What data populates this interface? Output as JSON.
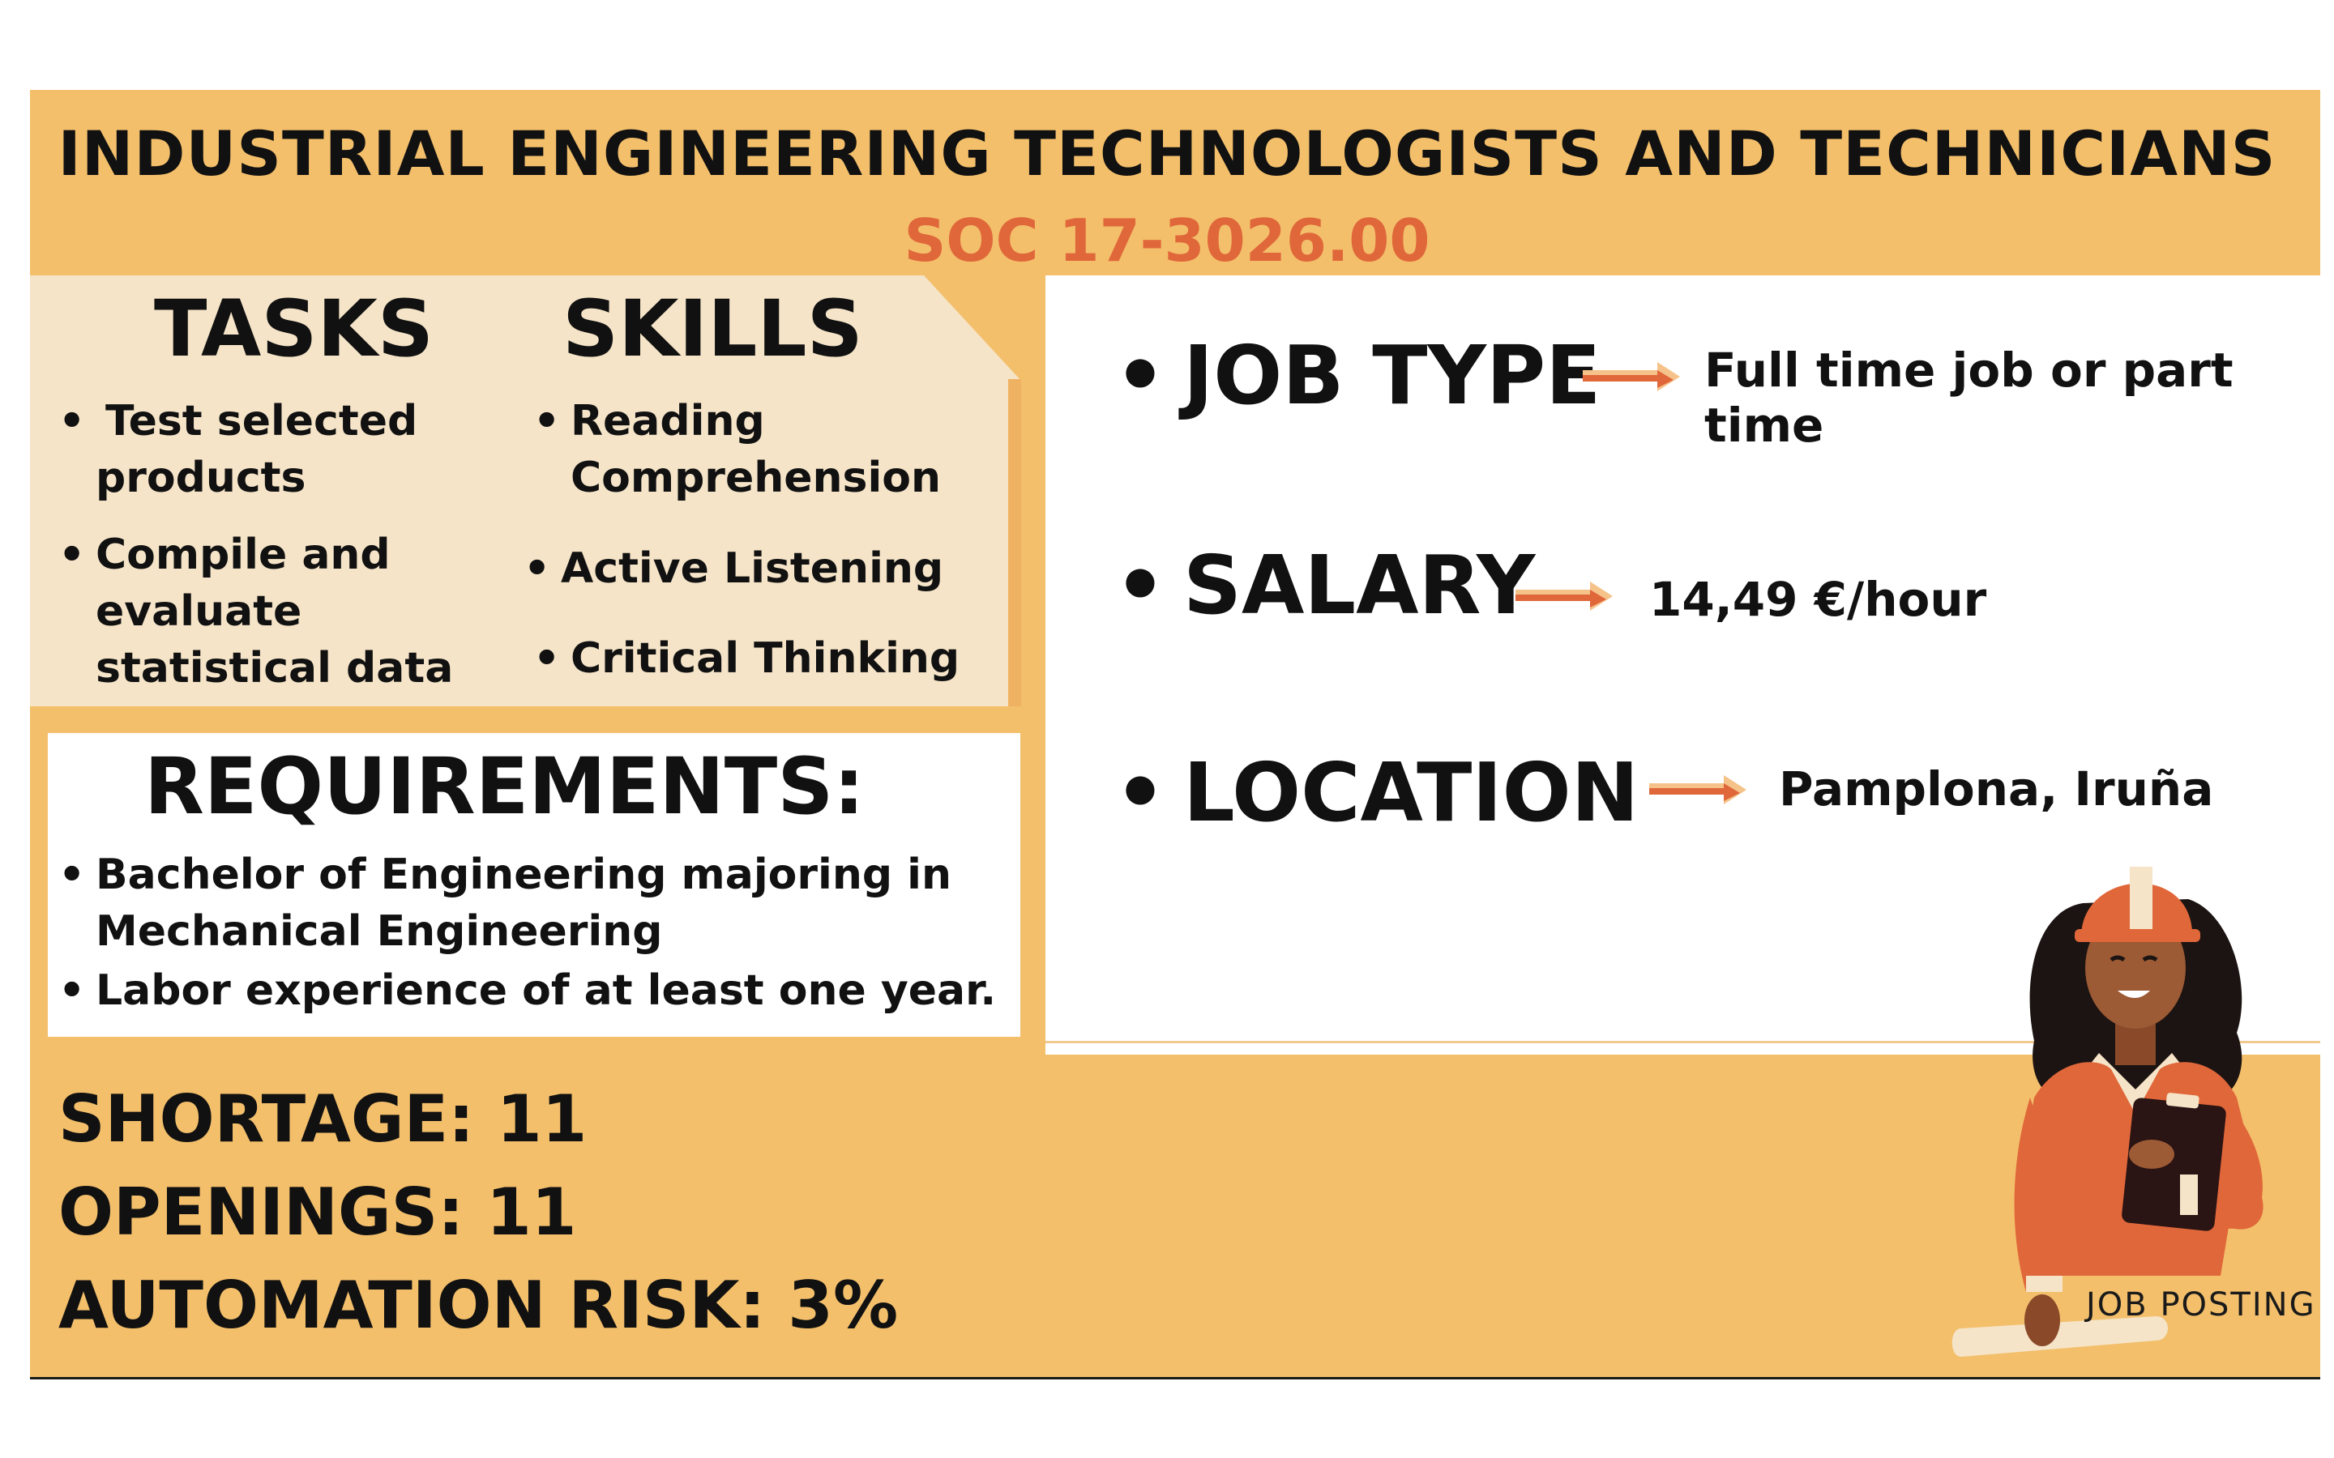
{
  "header": {
    "title": "INDUSTRIAL ENGINEERING TECHNOLOGISTS AND TECHNICIANS",
    "soc": "SOC 17-3026.00"
  },
  "tasks": {
    "heading": "TASKS",
    "items": [
      {
        "line1": "Test selected",
        "line2": "products"
      },
      {
        "line1": "Compile and",
        "line2": "evaluate",
        "line3": "statistical data"
      }
    ]
  },
  "skills": {
    "heading": "SKILLS",
    "items": [
      {
        "line1": "Reading",
        "line2": "Comprehension"
      },
      {
        "line1": "Active Listening"
      },
      {
        "line1": "Critical Thinking"
      }
    ]
  },
  "requirements": {
    "heading": "REQUIREMENTS:",
    "items": [
      {
        "line1": "Bachelor of Engineering majoring in",
        "line2": "Mechanical Engineering"
      },
      {
        "line1": "Labor experience of at least one year."
      }
    ]
  },
  "details": {
    "job_type": {
      "label": "JOB TYPE",
      "value": "Full time job or part time"
    },
    "salary": {
      "label": "SALARY",
      "value": "14,49 €/hour"
    },
    "location": {
      "label": "LOCATION",
      "value": "Pamplona, Iruña"
    }
  },
  "stats": {
    "shortage": "SHORTAGE: 11",
    "openings": "OPENINGS: 11",
    "automation": "AUTOMATION RISK: 3%"
  },
  "badge": "JOB POSTING",
  "colors": {
    "background": "#f3bf6b",
    "panel": "#f5e4c8",
    "accent": "#e0673a",
    "text": "#111111"
  }
}
